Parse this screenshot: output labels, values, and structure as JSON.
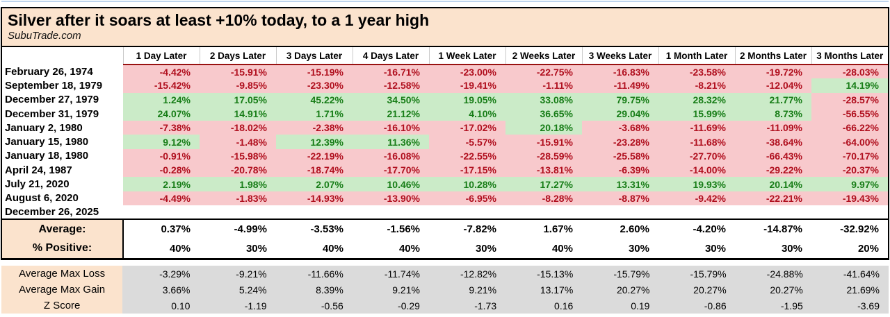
{
  "title": "Silver after it soars at least +10% today, to a 1 year high",
  "subtitle": "SubuTrade.com",
  "colors": {
    "peach": "#FBE3CD",
    "pink": "#F8C9CC",
    "green-bg": "#CBEBC8",
    "red": "#B00F1E",
    "green": "#177D17",
    "gray": "#DBDBDB",
    "divider-red": "#991111",
    "top-line": "#BDD4EE"
  },
  "chart_data": {
    "type": "table",
    "columns": [
      "1 Day Later",
      "2 Days Later",
      "3 Days Later",
      "4 Days Later",
      "1 Week Later",
      "2 Weeks Later",
      "3 Weeks Later",
      "1 Month Later",
      "2 Months Later",
      "3 Months Later"
    ],
    "rows": [
      {
        "date": "February 26, 1974",
        "values": [
          "-4.42%",
          "-15.91%",
          "-15.19%",
          "-16.71%",
          "-23.00%",
          "-22.75%",
          "-16.83%",
          "-23.58%",
          "-19.72%",
          "-28.03%"
        ]
      },
      {
        "date": "September 18, 1979",
        "values": [
          "-15.42%",
          "-9.85%",
          "-23.30%",
          "-12.58%",
          "-19.41%",
          "-1.11%",
          "-11.49%",
          "-8.21%",
          "-12.04%",
          "14.19%"
        ]
      },
      {
        "date": "December 27, 1979",
        "values": [
          "1.24%",
          "17.05%",
          "45.22%",
          "34.50%",
          "19.05%",
          "33.08%",
          "79.75%",
          "28.32%",
          "21.77%",
          "-28.57%"
        ]
      },
      {
        "date": "December 31, 1979",
        "values": [
          "24.07%",
          "14.91%",
          "1.71%",
          "21.12%",
          "4.10%",
          "36.65%",
          "29.04%",
          "15.99%",
          "8.73%",
          "-56.55%"
        ]
      },
      {
        "date": "January 2, 1980",
        "values": [
          "-7.38%",
          "-18.02%",
          "-2.38%",
          "-16.10%",
          "-17.02%",
          "20.18%",
          "-3.68%",
          "-11.69%",
          "-11.09%",
          "-66.22%"
        ]
      },
      {
        "date": "January 15, 1980",
        "values": [
          "9.12%",
          "-1.48%",
          "12.39%",
          "11.36%",
          "-5.57%",
          "-15.91%",
          "-23.28%",
          "-11.68%",
          "-38.64%",
          "-64.00%"
        ]
      },
      {
        "date": "January 18, 1980",
        "values": [
          "-0.91%",
          "-15.98%",
          "-22.19%",
          "-16.08%",
          "-22.55%",
          "-28.59%",
          "-25.58%",
          "-27.70%",
          "-66.43%",
          "-70.17%"
        ]
      },
      {
        "date": "April 24, 1987",
        "values": [
          "-0.28%",
          "-20.78%",
          "-18.74%",
          "-17.70%",
          "-17.15%",
          "-13.81%",
          "-6.39%",
          "-14.00%",
          "-29.22%",
          "-20.37%"
        ]
      },
      {
        "date": "July 21, 2020",
        "values": [
          "2.19%",
          "1.98%",
          "2.07%",
          "10.46%",
          "10.28%",
          "17.27%",
          "13.31%",
          "19.93%",
          "20.14%",
          "9.97%"
        ]
      },
      {
        "date": "August 6, 2020",
        "values": [
          "-4.49%",
          "-1.83%",
          "-14.93%",
          "-13.90%",
          "-6.95%",
          "-8.28%",
          "-8.87%",
          "-9.42%",
          "-22.21%",
          "-19.43%"
        ]
      },
      {
        "date": "December 26, 2025",
        "values": [
          "",
          "",
          "",
          "",
          "",
          "",
          "",
          "",
          "",
          ""
        ]
      }
    ],
    "summary": {
      "average_label": "Average:",
      "average": [
        "0.37%",
        "-4.99%",
        "-3.53%",
        "-1.56%",
        "-7.82%",
        "1.67%",
        "2.60%",
        "-4.20%",
        "-14.87%",
        "-32.92%"
      ],
      "pct_positive_label": "% Positive:",
      "pct_positive": [
        "40%",
        "30%",
        "40%",
        "40%",
        "30%",
        "40%",
        "30%",
        "30%",
        "30%",
        "20%"
      ]
    },
    "stats": [
      {
        "label": "Average Max Loss",
        "values": [
          "-3.29%",
          "-9.21%",
          "-11.66%",
          "-11.74%",
          "-12.82%",
          "-15.13%",
          "-15.79%",
          "-15.79%",
          "-24.88%",
          "-41.64%"
        ]
      },
      {
        "label": "Average Max Gain",
        "values": [
          "3.66%",
          "5.24%",
          "8.39%",
          "9.21%",
          "9.21%",
          "13.17%",
          "20.27%",
          "20.27%",
          "20.27%",
          "21.69%"
        ]
      },
      {
        "label": "Z Score",
        "values": [
          "0.10",
          "-1.19",
          "-0.56",
          "-0.29",
          "-1.73",
          "0.16",
          "0.19",
          "-0.86",
          "-1.95",
          "-3.69"
        ]
      }
    ]
  }
}
